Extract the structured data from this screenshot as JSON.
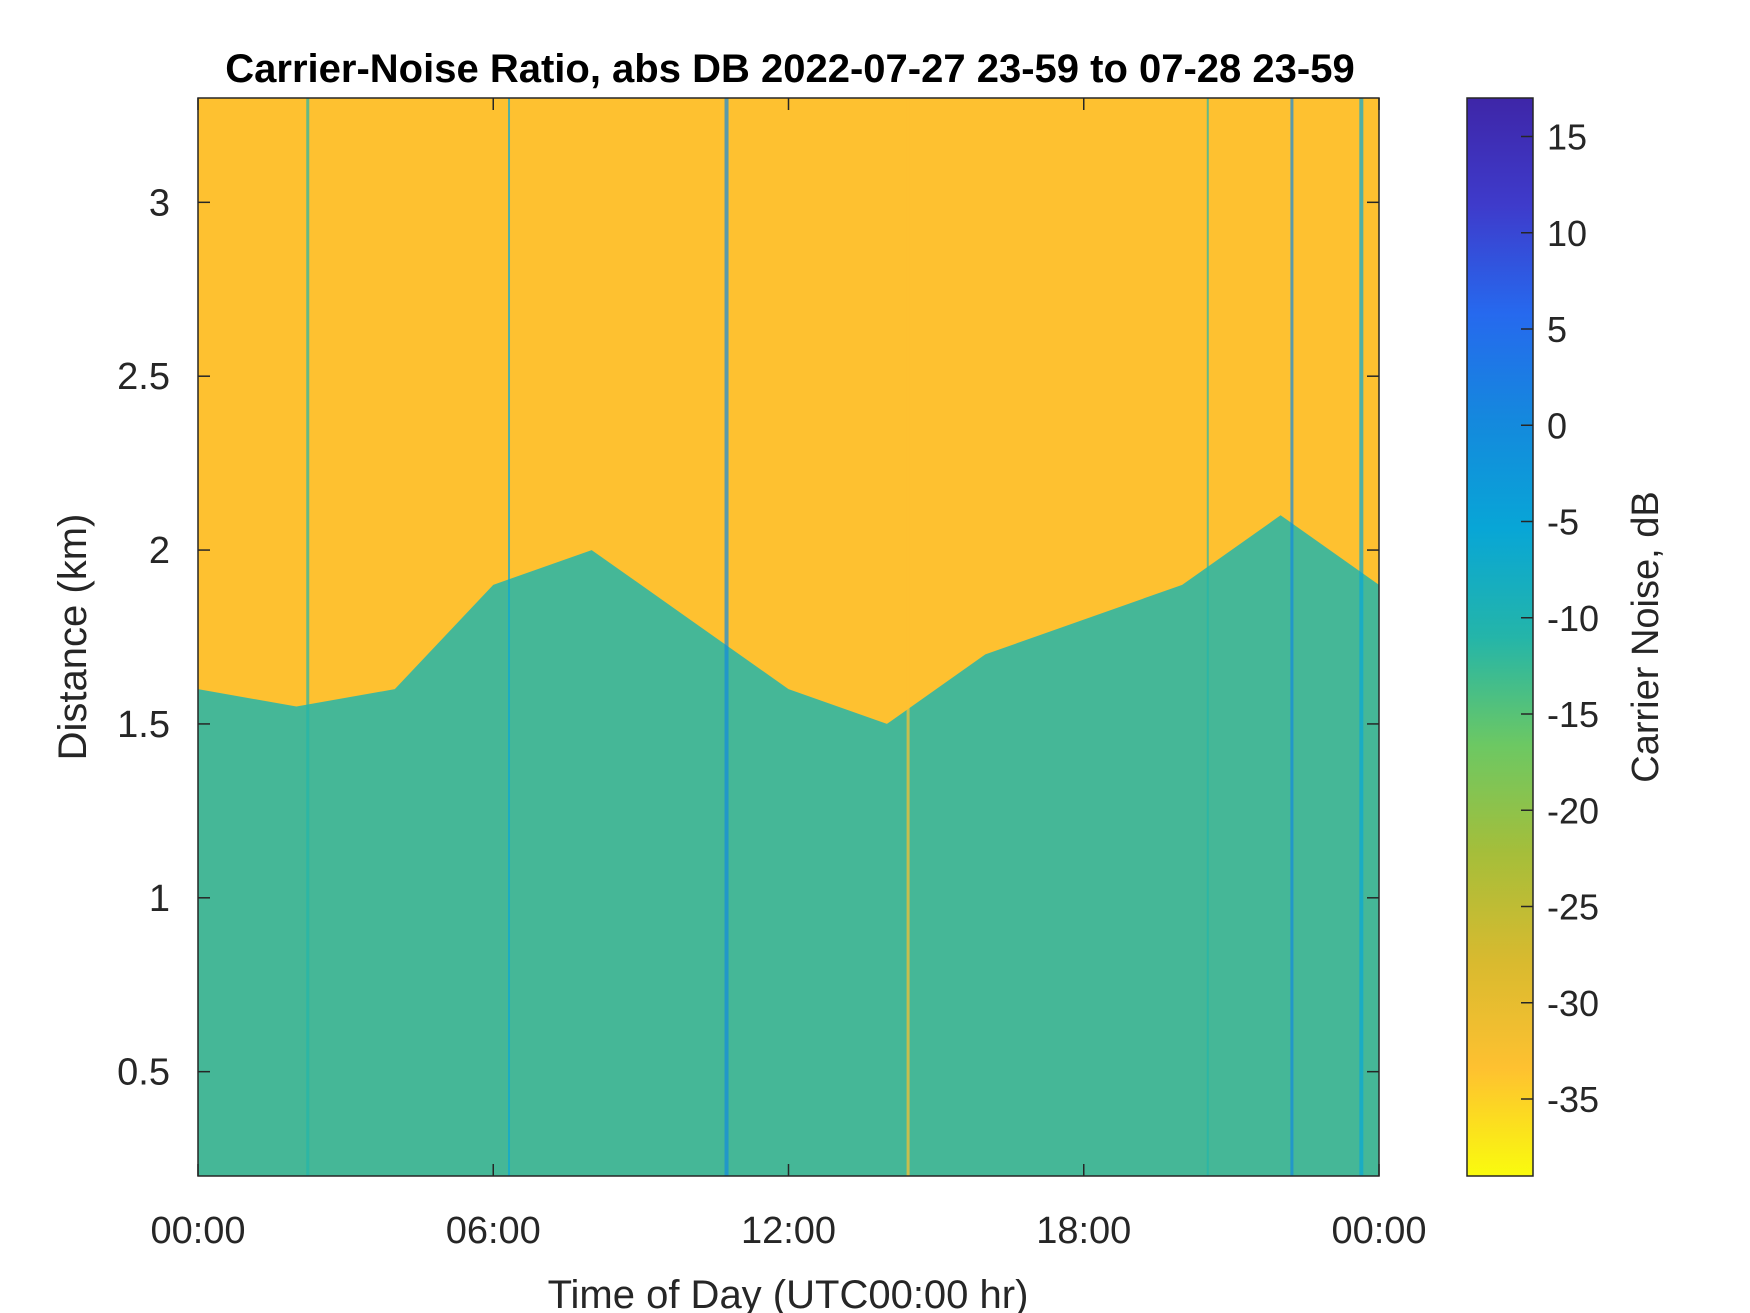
{
  "chart_data": {
    "type": "heatmap",
    "title": "Carrier-Noise Ratio, abs DB 2022-07-27 23-59 to 07-28 23-59",
    "xlabel": "Time of Day (UTC00:00 hr)",
    "ylabel": "Distance (km)",
    "xlim_hours": [
      0,
      24
    ],
    "ylim": [
      0.2,
      3.3
    ],
    "x_ticks": [
      {
        "hour": 0,
        "label": "00:00"
      },
      {
        "hour": 6,
        "label": "06:00"
      },
      {
        "hour": 12,
        "label": "12:00"
      },
      {
        "hour": 18,
        "label": "18:00"
      },
      {
        "hour": 24,
        "label": "00:00"
      }
    ],
    "y_ticks": [
      {
        "value": 0.5,
        "label": "0.5"
      },
      {
        "value": 1,
        "label": "1"
      },
      {
        "value": 1.5,
        "label": "1.5"
      },
      {
        "value": 2,
        "label": "2"
      },
      {
        "value": 2.5,
        "label": "2.5"
      },
      {
        "value": 3,
        "label": "3"
      }
    ],
    "colorbar": {
      "label": "Carrier Noise, dB",
      "range": [
        -39,
        17
      ],
      "ticks": [
        15,
        10,
        5,
        0,
        -5,
        -10,
        -15,
        -20,
        -25,
        -30,
        -35
      ],
      "colormap": "parula",
      "colors": [
        "#F9FB0E",
        "#FEC130",
        "#D8BA2F",
        "#A5BE3A",
        "#6CC863",
        "#24B5A9",
        "#08A6D6",
        "#1489DD",
        "#2669EE",
        "#3E3BCB",
        "#3E26A8"
      ]
    },
    "background_band_hours": [
      {
        "hour": 0,
        "boundary_km": 1.6
      },
      {
        "hour": 2,
        "boundary_km": 1.55
      },
      {
        "hour": 4,
        "boundary_km": 1.6
      },
      {
        "hour": 6,
        "boundary_km": 1.9
      },
      {
        "hour": 8,
        "boundary_km": 2.0
      },
      {
        "hour": 10,
        "boundary_km": 1.8
      },
      {
        "hour": 12,
        "boundary_km": 1.6
      },
      {
        "hour": 14,
        "boundary_km": 1.5
      },
      {
        "hour": 16,
        "boundary_km": 1.7
      },
      {
        "hour": 18,
        "boundary_km": 1.8
      },
      {
        "hour": 20,
        "boundary_km": 1.9
      },
      {
        "hour": 22,
        "boundary_km": 2.1
      },
      {
        "hour": 24,
        "boundary_km": 1.9
      }
    ]
  }
}
